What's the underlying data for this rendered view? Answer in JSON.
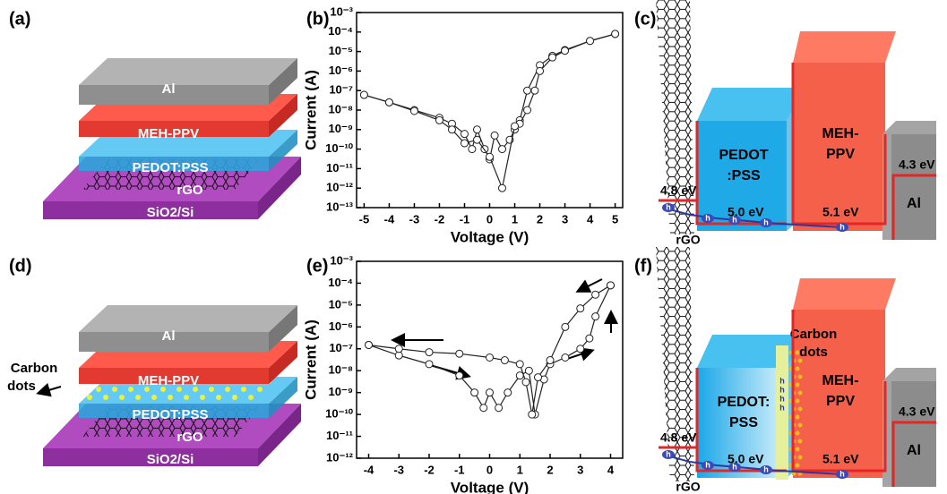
{
  "chart_data": [
    {
      "type": "line",
      "panel_label": "(b)",
      "xlabel": "Voltage (V)",
      "ylabel": "Current (A)",
      "ylog": true,
      "xlim": [
        -5.3,
        5.3
      ],
      "xticks": [
        -5,
        -4,
        -3,
        -2,
        -1,
        0,
        1,
        2,
        3,
        4,
        5
      ],
      "ylim": [
        1e-13,
        0.001
      ],
      "yticks": [
        {
          "value": 1e-13,
          "label": "10⁻¹³"
        },
        {
          "value": 1e-12,
          "label": "10⁻¹²"
        },
        {
          "value": 1e-11,
          "label": "10⁻¹¹"
        },
        {
          "value": 1e-10,
          "label": "10⁻¹⁰"
        },
        {
          "value": 1e-09,
          "label": "10⁻⁹"
        },
        {
          "value": 1e-08,
          "label": "10⁻⁸"
        },
        {
          "value": 1e-07,
          "label": "10⁻⁷"
        },
        {
          "value": 1e-06,
          "label": "10⁻⁶"
        },
        {
          "value": 1e-05,
          "label": "10⁻⁵"
        },
        {
          "value": 0.0001,
          "label": "10⁻⁴"
        },
        {
          "value": 0.001,
          "label": "10⁻³"
        }
      ],
      "series": [
        {
          "color": "#222222",
          "x": [
            -5,
            -4,
            -3,
            -2,
            -1.5,
            -1,
            -0.7,
            -0.5,
            -0.2,
            0,
            0.2,
            0.5,
            0.8,
            1,
            1.2,
            1.5,
            2,
            2.5,
            3,
            4,
            5
          ],
          "values": [
            6e-08,
            2.5e-08,
            1e-08,
            4e-09,
            2e-09,
            6e-10,
            1e-10,
            1e-09,
            1e-10,
            3e-11,
            5e-10,
            1e-10,
            3e-10,
            1e-09,
            3e-09,
            1e-07,
            2e-06,
            6e-06,
            1.2e-05,
            3.5e-05,
            8e-05
          ]
        },
        {
          "color": "#222222",
          "x": [
            5,
            4,
            3,
            2.5,
            2,
            1.8,
            1.5,
            1.2,
            1,
            0.5,
            0,
            -0.5,
            -1,
            -1.5,
            -2,
            -3,
            -4,
            -5
          ],
          "values": [
            8e-05,
            3.5e-05,
            1.1e-05,
            5e-06,
            1e-06,
            1e-07,
            1e-08,
            2e-09,
            1.5e-09,
            1e-12,
            4e-11,
            3e-10,
            2e-10,
            1e-09,
            3e-09,
            9e-09,
            2.5e-08,
            6e-08
          ]
        }
      ]
    },
    {
      "type": "line",
      "panel_label": "(e)",
      "xlabel": "Voltage (V)",
      "ylabel": "Current (A)",
      "ylog": true,
      "xlim": [
        -4.4,
        4.4
      ],
      "xticks": [
        -4,
        -3,
        -2,
        -1,
        0,
        1,
        2,
        3,
        4
      ],
      "ylim": [
        1e-12,
        0.001
      ],
      "yticks": [
        {
          "value": 1e-12,
          "label": "10⁻¹²"
        },
        {
          "value": 1e-11,
          "label": "10⁻¹¹"
        },
        {
          "value": 1e-10,
          "label": "10⁻¹⁰"
        },
        {
          "value": 1e-09,
          "label": "10⁻⁹"
        },
        {
          "value": 1e-08,
          "label": "10⁻⁸"
        },
        {
          "value": 1e-07,
          "label": "10⁻⁷"
        },
        {
          "value": 1e-06,
          "label": "10⁻⁶"
        },
        {
          "value": 1e-05,
          "label": "10⁻⁵"
        },
        {
          "value": 0.0001,
          "label": "10⁻⁴"
        },
        {
          "value": 0.001,
          "label": "10⁻³"
        }
      ],
      "series": [
        {
          "color": "#222222",
          "x": [
            -4,
            -3,
            -2,
            -1,
            -0.5,
            -0.2,
            0,
            0.3,
            0.6,
            1,
            1.3,
            1.5,
            1.8,
            2,
            2.5,
            3,
            3.3,
            3.5,
            4
          ],
          "values": [
            1.5e-07,
            5e-08,
            2e-08,
            6e-09,
            1e-09,
            2e-10,
            1e-09,
            2e-10,
            1e-09,
            6e-09,
            1e-08,
            1e-10,
            4e-09,
            2e-08,
            4e-08,
            1e-07,
            3e-07,
            3e-06,
            8e-05
          ]
        },
        {
          "color": "#222222",
          "x": [
            4,
            3.5,
            3,
            2.5,
            2,
            1.6,
            1.4,
            1.2,
            1,
            0.5,
            0,
            -1,
            -2,
            -3,
            -4
          ],
          "values": [
            8e-05,
            3e-05,
            7e-06,
            1e-06,
            3e-08,
            5e-09,
            1e-10,
            3e-09,
            2e-08,
            3e-08,
            4e-08,
            6e-08,
            7e-08,
            1e-07,
            1.5e-07
          ]
        }
      ]
    }
  ],
  "diagrams": {
    "a": {
      "label": "(a)",
      "layers": [
        "Al",
        "MEH-PPV",
        "PEDOT:PSS",
        "rGO",
        "SiO2/Si"
      ]
    },
    "d": {
      "label": "(d)",
      "layers": [
        "Al",
        "MEH-PPV",
        "PEDOT:PSS",
        "rGO",
        "SiO2/Si"
      ],
      "dots": [
        "Carbon",
        "dots"
      ]
    },
    "c": {
      "label": "(c)",
      "pedot": [
        "PEDOT",
        ":PSS"
      ],
      "meh": [
        "MEH-",
        "PPV"
      ],
      "al": "Al",
      "rgo": "rGO",
      "levels": [
        "4.8 eV",
        "5.0 eV",
        "5.1 eV",
        "4.3 eV"
      ],
      "hole": "h"
    },
    "f": {
      "label": "(f)",
      "pedot": [
        "PEDOT:",
        "PSS"
      ],
      "meh": [
        "MEH-",
        "PPV"
      ],
      "al": "Al",
      "rgo": "rGO",
      "levels": [
        "4.8 eV",
        "5.0 eV",
        "5.1 eV",
        "4.3 eV"
      ],
      "hole": "h",
      "dots": [
        "Carbon",
        "dots"
      ]
    }
  }
}
